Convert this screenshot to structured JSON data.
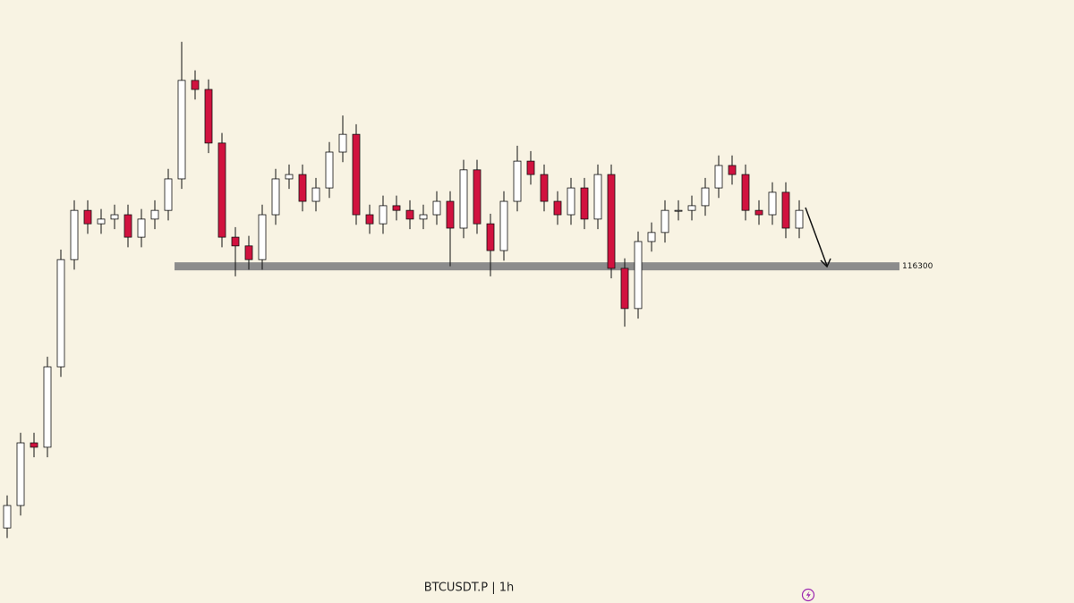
{
  "chart_data": {
    "type": "candlestick",
    "title": "BTCUSDT.P | 1h",
    "ylim": [
      106250,
      124250
    ],
    "up_color": "#ffffff",
    "down_color": "#d1123f",
    "wick_color": "#111111",
    "level": {
      "value": 116300,
      "color": "#8c8c8c"
    },
    "ohlc": [
      [
        108490,
        109460,
        108190,
        109160
      ],
      [
        109160,
        111330,
        108860,
        111030
      ],
      [
        111030,
        111330,
        110600,
        110900
      ],
      [
        110900,
        113600,
        110600,
        113300
      ],
      [
        113300,
        116800,
        113000,
        116500
      ],
      [
        116500,
        118270,
        116200,
        117970
      ],
      [
        117970,
        118270,
        117270,
        117570
      ],
      [
        117570,
        118010,
        117270,
        117710
      ],
      [
        117710,
        118140,
        117410,
        117840
      ],
      [
        117840,
        118140,
        116870,
        117170
      ],
      [
        117170,
        118010,
        116870,
        117710
      ],
      [
        117710,
        118270,
        117410,
        117970
      ],
      [
        117970,
        119210,
        117670,
        118910
      ],
      [
        118910,
        123000,
        118610,
        121850
      ],
      [
        121850,
        122150,
        121280,
        121580
      ],
      [
        121580,
        121880,
        119680,
        119980
      ],
      [
        119980,
        120280,
        116870,
        117170
      ],
      [
        117170,
        117470,
        116000,
        116910
      ],
      [
        116910,
        117210,
        116200,
        116500
      ],
      [
        116500,
        118140,
        116200,
        117840
      ],
      [
        117840,
        119210,
        117540,
        118910
      ],
      [
        118910,
        119340,
        118610,
        119040
      ],
      [
        119040,
        119340,
        117940,
        118240
      ],
      [
        118240,
        118940,
        117940,
        118640
      ],
      [
        118640,
        120010,
        118340,
        119710
      ],
      [
        119710,
        120800,
        119410,
        120240
      ],
      [
        120240,
        120540,
        117540,
        117840
      ],
      [
        117840,
        118140,
        117270,
        117570
      ],
      [
        117570,
        118410,
        117270,
        118110
      ],
      [
        118110,
        118410,
        117670,
        117970
      ],
      [
        117970,
        118270,
        117410,
        117710
      ],
      [
        117710,
        118140,
        117410,
        117840
      ],
      [
        117840,
        118540,
        117540,
        118240
      ],
      [
        118240,
        118540,
        116300,
        117440
      ],
      [
        117440,
        119480,
        117140,
        119180
      ],
      [
        119180,
        119480,
        117270,
        117570
      ],
      [
        117570,
        117870,
        116000,
        116770
      ],
      [
        116770,
        118540,
        116470,
        118240
      ],
      [
        118240,
        119900,
        117940,
        119440
      ],
      [
        119440,
        119740,
        118740,
        119040
      ],
      [
        119040,
        119340,
        117940,
        118240
      ],
      [
        118240,
        118540,
        117540,
        117840
      ],
      [
        117840,
        118940,
        117540,
        118640
      ],
      [
        118640,
        118940,
        117410,
        117710
      ],
      [
        117710,
        119340,
        117410,
        119040
      ],
      [
        119040,
        119340,
        115940,
        116240
      ],
      [
        116240,
        116540,
        114500,
        115040
      ],
      [
        115040,
        117340,
        114740,
        117040
      ],
      [
        117040,
        117610,
        116740,
        117310
      ],
      [
        117310,
        118270,
        117010,
        117970
      ],
      [
        117970,
        118270,
        117670,
        117970
      ],
      [
        117970,
        118410,
        117670,
        118110
      ],
      [
        118110,
        118940,
        117810,
        118640
      ],
      [
        118640,
        119610,
        118340,
        119310
      ],
      [
        119310,
        119610,
        118740,
        119040
      ],
      [
        119040,
        119340,
        117670,
        117970
      ],
      [
        117970,
        118270,
        117540,
        117840
      ],
      [
        117840,
        118810,
        117540,
        118510
      ],
      [
        118510,
        118810,
        117140,
        117440
      ],
      [
        117440,
        118270,
        117140,
        117970
      ]
    ]
  }
}
